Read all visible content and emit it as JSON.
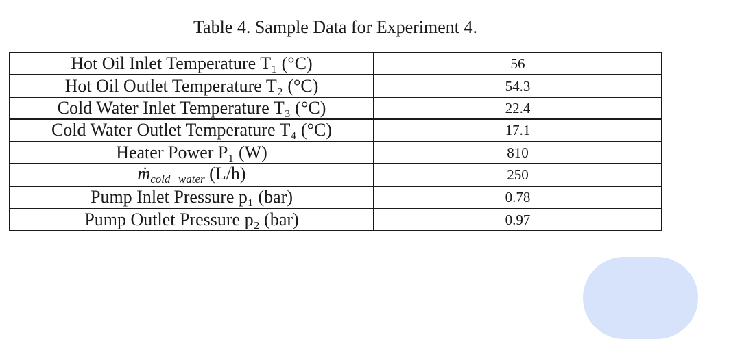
{
  "caption": "Table 4. Sample Data for Experiment 4.",
  "rows": [
    {
      "parameter": "Hot Oil Inlet Temperature T₁ (°C)",
      "value": "56"
    },
    {
      "parameter": "Hot Oil Outlet Temperature T₂ (°C)",
      "value": "54.3"
    },
    {
      "parameter": "Cold Water Inlet Temperature T₃ (°C)",
      "value": "22.4"
    },
    {
      "parameter": "Cold Water Outlet Temperature T₄ (°C)",
      "value": "17.1"
    },
    {
      "parameter": "Heater Power P₁ (W)",
      "value": "810"
    },
    {
      "parameter_symbol": "ṁ",
      "parameter_subscript": "cold−water",
      "parameter_unit": " (L/h)",
      "value": "250"
    },
    {
      "parameter": "Pump Inlet Pressure p₁ (bar)",
      "value": "0.78"
    },
    {
      "parameter": "Pump Outlet Pressure p₂ (bar)",
      "value": "0.97"
    }
  ],
  "colors": {
    "text": "#1a1a1a",
    "border": "#1a1a1a",
    "blob": "#d6e3fb"
  }
}
